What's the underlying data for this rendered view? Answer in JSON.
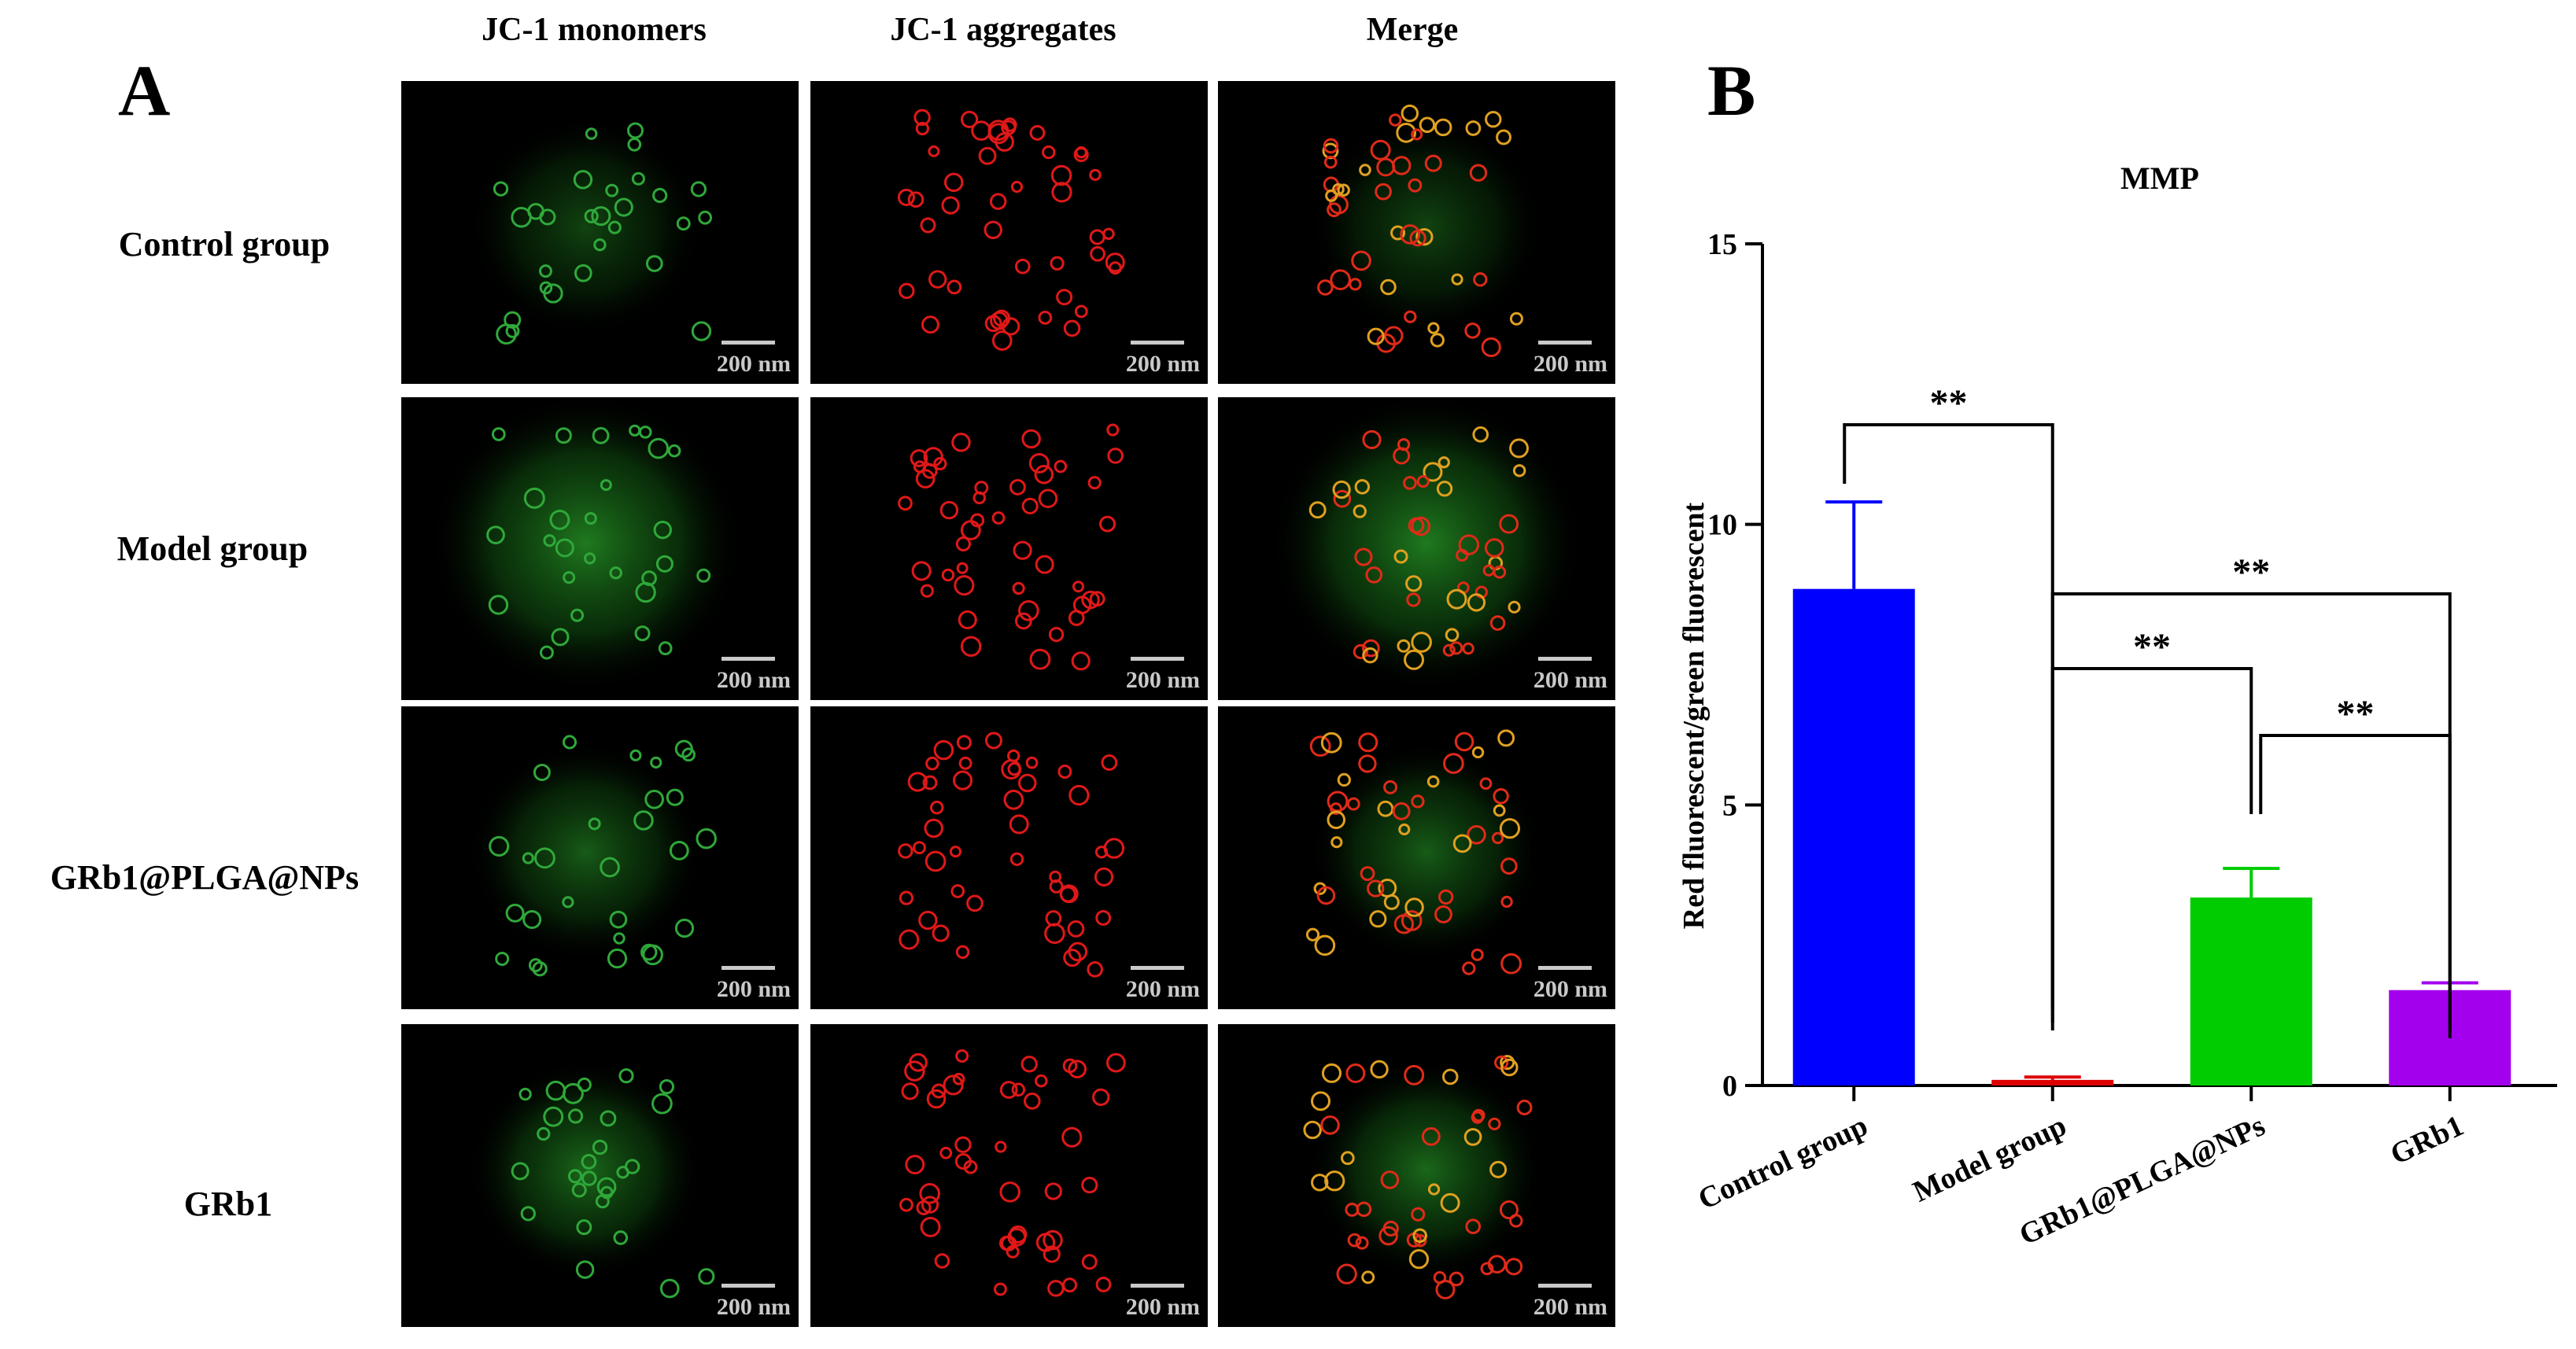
{
  "panel_a": {
    "letter": "A",
    "columns": [
      "JC-1 monomers",
      "JC-1 aggregates",
      "Merge"
    ],
    "rows": [
      "Control group",
      "Model group",
      "GRb1@PLGA@NPs",
      "GRb1"
    ],
    "scale_label": "200 nm"
  },
  "panel_b": {
    "letter": "B"
  },
  "chart_data": {
    "type": "bar",
    "title": "MMP",
    "ylabel": "Red fluorescent/green fluorescent",
    "xlabel": "",
    "categories": [
      "Control group",
      "Model group",
      "GRb1@PLGA@NPs",
      "GRb1"
    ],
    "values": [
      8.85,
      0.1,
      3.35,
      1.7
    ],
    "errors": [
      1.55,
      0.05,
      0.52,
      0.13
    ],
    "colors": [
      "#0000ff",
      "#dd0000",
      "#00cc00",
      "#a300ee"
    ],
    "ylim": [
      0,
      15
    ],
    "yticks": [
      0,
      5,
      10,
      15
    ],
    "grid": false,
    "significance": [
      {
        "from": 0,
        "to": 1,
        "label": "**"
      },
      {
        "from": 1,
        "to": 3,
        "label": "**"
      },
      {
        "from": 1,
        "to": 2,
        "label": "**"
      },
      {
        "from": 2,
        "to": 3,
        "label": "**"
      }
    ]
  }
}
